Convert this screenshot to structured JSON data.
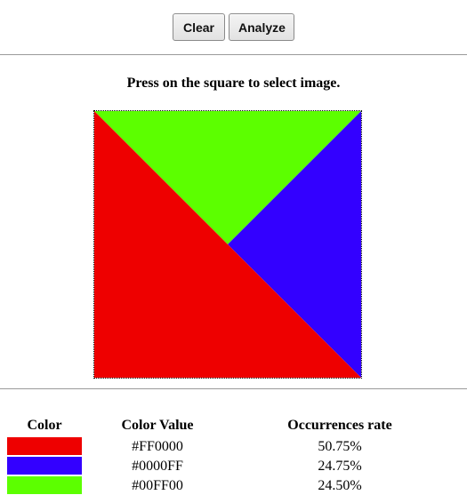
{
  "toolbar": {
    "clear_label": "Clear",
    "analyze_label": "Analyze"
  },
  "instruction": "Press on the square to select image.",
  "image": {
    "regions": [
      {
        "name": "top-triangle",
        "color": "#5CFF00"
      },
      {
        "name": "right-triangle",
        "color": "#3300FF"
      },
      {
        "name": "bottom-left-triangle",
        "color": "#EE0000"
      }
    ]
  },
  "results": {
    "headers": {
      "color": "Color",
      "value": "Color Value",
      "rate": "Occurrences rate"
    },
    "rows": [
      {
        "swatch": "#EE0000",
        "value": "#FF0000",
        "rate": "50.75%"
      },
      {
        "swatch": "#3300FF",
        "value": "#0000FF",
        "rate": "24.75%"
      },
      {
        "swatch": "#5CFF00",
        "value": "#00FF00",
        "rate": "24.50%"
      }
    ]
  }
}
